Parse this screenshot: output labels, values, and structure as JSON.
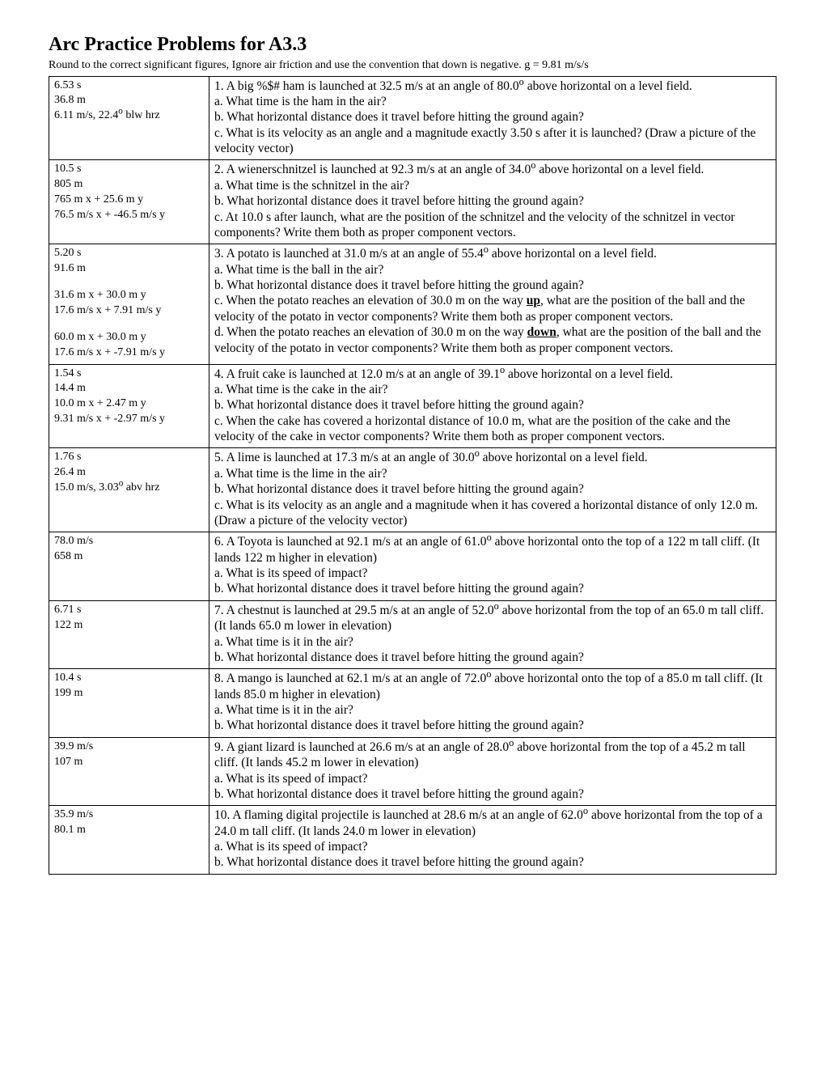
{
  "title": "Arc Practice Problems for A3.3",
  "subtitle": "Round to the correct significant figures, Ignore air friction and use the convention that down is negative.  g = 9.81 m/s/s",
  "rows": [
    {
      "answers": [
        "6.53 s",
        "36.8 m",
        "6.11 m/s, 22.4° blw hrz"
      ],
      "question_html": "1. A big %$# ham is launched at 32.5 m/s at an angle of 80.0° above horizontal on a level field.<br>a. What time is the ham in the air?<br>b. What horizontal distance does it travel before hitting the ground again?<br>c. What is its velocity as an angle and a magnitude exactly 3.50 s after it is launched?   (Draw a picture of the velocity vector)"
    },
    {
      "answers": [
        "10.5 s",
        "805 m",
        "765 m x + 25.6 m y",
        "76.5 m/s x + -46.5 m/s y"
      ],
      "question_html": "2. A wienerschnitzel is launched at 92.3 m/s at an angle of 34.0° above horizontal on a level field.<br>a. What time is the schnitzel in the air?<br>b. What horizontal distance does it travel before hitting the ground again?<br>c. At 10.0 s after launch, what are the position of the schnitzel and the velocity of the schnitzel in vector components?  Write them both as proper component vectors."
    },
    {
      "answers": [
        "5.20 s",
        "91.6 m",
        "",
        "31.6 m x + 30.0 m y",
        "17.6 m/s x + 7.91 m/s y",
        "",
        "60.0 m x + 30.0 m y",
        "17.6 m/s x + -7.91 m/s y"
      ],
      "question_html": "3. A potato is launched at 31.0 m/s at an angle of 55.4° above horizontal on a level field.<br>a. What time is the ball in the air?<br>b. What horizontal distance does it travel before hitting the ground again?<br>c. When the potato reaches an elevation of 30.0 m on the way <span class='u'>up</span>, what are the position of the ball and the velocity of the potato in vector components?  Write them both as proper component vectors.<br>d. When the potato reaches an elevation of 30.0 m on the way <span class='u'>down</span>, what are the position of the ball and the velocity of the potato in vector components?  Write them both as proper component vectors."
    },
    {
      "answers": [
        "1.54 s",
        "14.4 m",
        "10.0 m x + 2.47 m y",
        "9.31 m/s x + -2.97 m/s y"
      ],
      "question_html": "4. A fruit cake is launched at 12.0 m/s at an angle of 39.1° above horizontal on a level field.<br>a. What time is the cake in the air?<br>b. What horizontal distance does it travel before hitting the ground again?<br>c. When the cake has covered a horizontal distance of 10.0 m, what are the position of the cake and the velocity of the cake in vector components?  Write them both as proper component vectors."
    },
    {
      "answers": [
        "1.76 s",
        "26.4 m",
        "15.0 m/s, 3.03° abv hrz"
      ],
      "question_html": "5. A lime is launched at 17.3 m/s at an angle of 30.0° above horizontal on a level field.<br>a. What time is the lime in the air?<br>b. What horizontal distance does it travel before hitting the ground again?<br>c. What is its velocity as an angle and a magnitude when it has covered a horizontal distance of only 12.0 m.  (Draw a picture of the velocity vector)"
    },
    {
      "answers": [
        "78.0 m/s",
        "658 m"
      ],
      "question_html": "6. A Toyota is launched at 92.1 m/s at an angle of 61.0° above horizontal onto the top of a 122 m tall cliff.  (It lands 122 m higher in elevation)<br>a. What is its speed of impact?<br>b. What horizontal distance does it travel before hitting the ground again?"
    },
    {
      "answers": [
        "6.71 s",
        "122 m"
      ],
      "question_html": "7. A chestnut is launched at 29.5 m/s at an angle of 52.0° above horizontal from the top of an 65.0 m tall cliff.  (It lands 65.0 m lower in elevation)<br>a. What time is it in the air?<br>b. What horizontal distance does it travel before hitting the ground again?"
    },
    {
      "answers": [
        "10.4 s",
        "199 m"
      ],
      "question_html": "8. A mango is launched at 62.1 m/s at an angle of 72.0° above horizontal onto the top of a 85.0 m tall cliff.  (It lands 85.0 m higher in elevation)<br>a. What time is it in the air?<br>b. What horizontal distance does it travel before hitting the ground again?"
    },
    {
      "answers": [
        "39.9 m/s",
        "107 m"
      ],
      "question_html": "9. A giant lizard is launched at 26.6 m/s at an angle of 28.0° above horizontal from the top of a 45.2 m tall cliff.  (It lands 45.2 m lower in elevation)<br>a. What is its speed of impact?<br>b. What horizontal distance does it travel before hitting the ground again?"
    },
    {
      "answers": [
        "35.9 m/s",
        "80.1 m"
      ],
      "question_html": "10. A flaming digital projectile is launched at 28.6 m/s at an angle of 62.0° above horizontal from the top of a 24.0 m tall cliff.  (It lands 24.0 m lower in elevation)<br>a. What is its speed of impact?<br>b. What horizontal distance does it travel before hitting the ground again?"
    }
  ]
}
